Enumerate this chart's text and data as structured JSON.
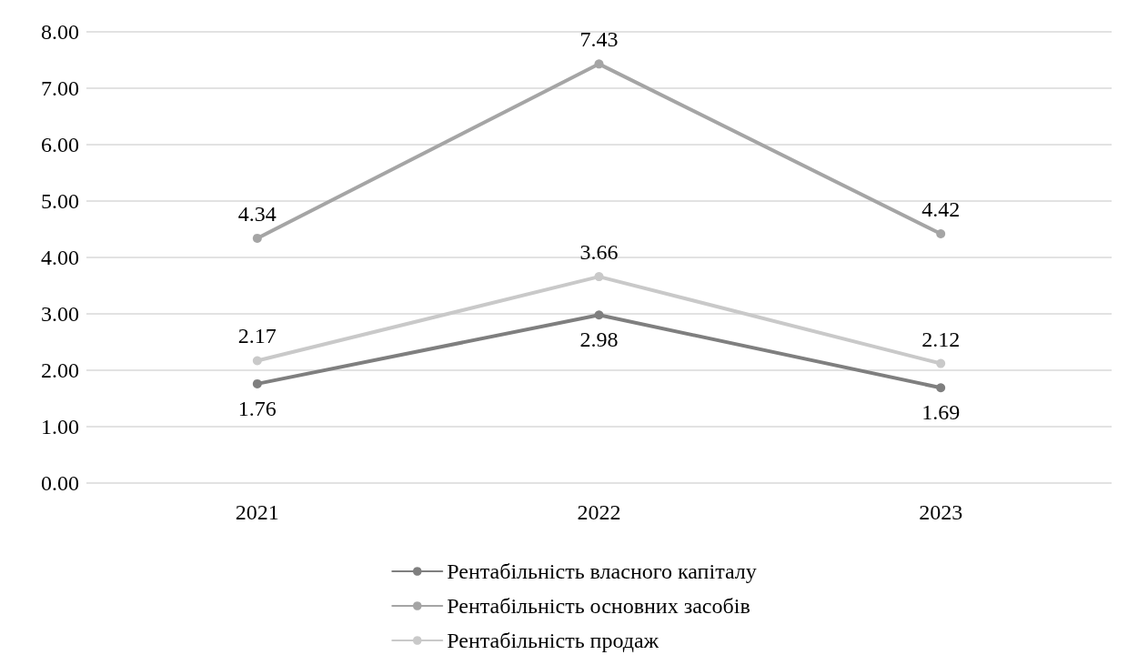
{
  "chart_data": {
    "type": "line",
    "categories": [
      "2021",
      "2022",
      "2023"
    ],
    "series": [
      {
        "name": "Рентабільність власного капіталу",
        "color": "#7f7f7f",
        "values": [
          1.76,
          2.98,
          1.69
        ]
      },
      {
        "name": "Рентабільність основних засобів",
        "color": "#a5a5a5",
        "values": [
          4.34,
          7.43,
          4.42
        ]
      },
      {
        "name": "Рентабільність продаж",
        "color": "#c9c9c9",
        "values": [
          2.17,
          3.66,
          2.12
        ]
      }
    ],
    "ylim": [
      0,
      8
    ],
    "yticks": [
      {
        "value": 0,
        "label": "0.00"
      },
      {
        "value": 1,
        "label": "1.00"
      },
      {
        "value": 2,
        "label": "2.00"
      },
      {
        "value": 3,
        "label": "3.00"
      },
      {
        "value": 4,
        "label": "4.00"
      },
      {
        "value": 5,
        "label": "5.00"
      },
      {
        "value": 6,
        "label": "6.00"
      },
      {
        "value": 7,
        "label": "7.00"
      },
      {
        "value": 8,
        "label": "8.00"
      }
    ],
    "grid": "y",
    "legend": "bottom",
    "marker": "circle",
    "line_style": "solid",
    "data_labels": true
  }
}
